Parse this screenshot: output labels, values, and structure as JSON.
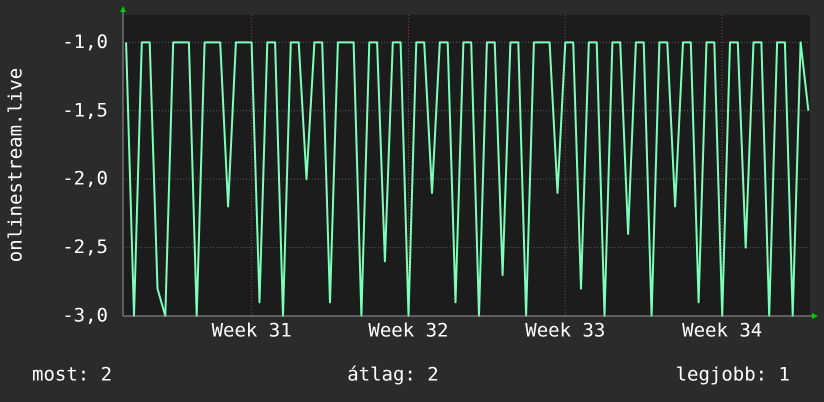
{
  "chart_data": {
    "type": "line",
    "y_label": "onlinestream.live",
    "x": [
      30.2,
      30.25,
      30.3,
      30.35,
      30.4,
      30.45,
      30.5,
      30.55,
      30.6,
      30.65,
      30.7,
      30.75,
      30.8,
      30.85,
      30.9,
      30.95,
      31,
      31.05,
      31.1,
      31.15,
      31.2,
      31.25,
      31.3,
      31.35,
      31.4,
      31.45,
      31.5,
      31.55,
      31.6,
      31.65,
      31.7,
      31.75,
      31.8,
      31.85,
      31.9,
      31.95,
      32,
      32.05,
      32.1,
      32.15,
      32.2,
      32.25,
      32.3,
      32.35,
      32.4,
      32.45,
      32.5,
      32.55,
      32.6,
      32.65,
      32.7,
      32.75,
      32.8,
      32.85,
      32.9,
      32.95,
      33,
      33.05,
      33.1,
      33.15,
      33.2,
      33.25,
      33.3,
      33.35,
      33.4,
      33.45,
      33.5,
      33.55,
      33.6,
      33.65,
      33.7,
      33.75,
      33.8,
      33.85,
      33.9,
      33.95,
      34,
      34.05,
      34.1,
      34.15,
      34.2,
      34.25,
      34.3,
      34.35,
      34.4,
      34.45,
      34.5,
      34.55
    ],
    "series": [
      {
        "color": "#7dffba",
        "values": [
          -1,
          -3,
          -1,
          -1,
          -2.8,
          -3,
          -1,
          -1,
          -1,
          -3,
          -1,
          -1,
          -1,
          -2.2,
          -1,
          -1,
          -1,
          -2.9,
          -1,
          -1,
          -3,
          -1,
          -1,
          -2,
          -1,
          -1,
          -2.9,
          -1,
          -1,
          -1,
          -3,
          -1,
          -1,
          -2.6,
          -1,
          -1,
          -3,
          -1,
          -1,
          -2.1,
          -1,
          -1,
          -2.9,
          -1,
          -1,
          -3,
          -1,
          -1,
          -2.7,
          -1,
          -1,
          -3,
          -1,
          -1,
          -1,
          -2.1,
          -1,
          -1,
          -2.8,
          -1,
          -1,
          -3,
          -1,
          -1,
          -2.4,
          -1,
          -1,
          -3,
          -1,
          -1,
          -2.2,
          -1,
          -1,
          -2.9,
          -1,
          -1,
          -3,
          -1,
          -1,
          -2.5,
          -1,
          -1,
          -3,
          -1,
          -1,
          -3,
          -1,
          -1.5
        ]
      }
    ],
    "xlim": [
      30.18,
      34.56
    ],
    "xticks": [
      {
        "value": 31,
        "label": "Week 31"
      },
      {
        "value": 32,
        "label": "Week 32"
      },
      {
        "value": 33,
        "label": "Week 33"
      },
      {
        "value": 34,
        "label": "Week 34"
      }
    ],
    "ylim": [
      -3,
      -0.8
    ],
    "yticks": [
      {
        "value": -3,
        "label": "-3,0"
      },
      {
        "value": -2.5,
        "label": "-2,5"
      },
      {
        "value": -2,
        "label": "-2,0"
      },
      {
        "value": -1.5,
        "label": "-1,5"
      },
      {
        "value": -1,
        "label": "-1,0"
      }
    ],
    "grid": true,
    "footer": {
      "current": "most: 2",
      "average": "átlag: 2",
      "best": "legjobb: 1"
    }
  }
}
